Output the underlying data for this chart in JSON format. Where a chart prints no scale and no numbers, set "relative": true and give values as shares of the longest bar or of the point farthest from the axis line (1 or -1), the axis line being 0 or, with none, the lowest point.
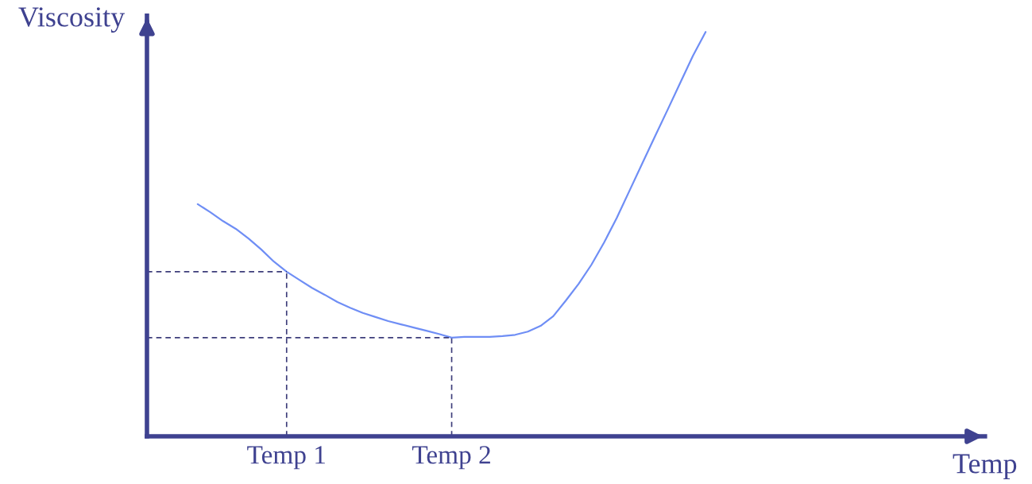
{
  "chart_data": {
    "type": "line",
    "relative": true,
    "xlabel": "Temp",
    "ylabel": "Viscosity",
    "categories": [
      null,
      null,
      null,
      null,
      null,
      null,
      null,
      null,
      null,
      null,
      null,
      "Temp 1",
      null,
      null,
      null,
      null,
      null,
      null,
      null,
      null,
      null,
      null,
      null,
      null,
      "Temp 2",
      null,
      null,
      null,
      null,
      null,
      null,
      null,
      null,
      null,
      null,
      null,
      null,
      null,
      null,
      null,
      null,
      null,
      null,
      null,
      null,
      null,
      null,
      null,
      null,
      null,
      null,
      null,
      null,
      null,
      null,
      null,
      null,
      null,
      null,
      null,
      null,
      null,
      null,
      null,
      null,
      null
    ],
    "marker": "none",
    "legend": false,
    "series": [
      {
        "color": "#6f8ef5",
        "line_style": "solid",
        "values": [
          null,
          null,
          null,
          null,
          0.574,
          0.554,
          0.532,
          0.513,
          0.489,
          0.462,
          0.432,
          0.407,
          0.387,
          0.367,
          0.35,
          0.332,
          0.318,
          0.305,
          0.295,
          0.285,
          0.277,
          0.269,
          0.261,
          0.253,
          0.244,
          0.246,
          0.246,
          0.246,
          0.248,
          0.251,
          0.259,
          0.273,
          0.297,
          0.336,
          0.377,
          0.424,
          0.479,
          0.54,
          0.607,
          0.674,
          0.741,
          0.807,
          0.874,
          0.941,
          1.0,
          null,
          null,
          null,
          null,
          null,
          null,
          null,
          null,
          null,
          null,
          null,
          null,
          null,
          null,
          null,
          null,
          null,
          null,
          null,
          null,
          null
        ]
      }
    ],
    "ref_lines": [
      {
        "axis": "x",
        "value": "Temp 1",
        "color": "#3d3d7a",
        "line_style": "dashed"
      },
      {
        "axis": "x",
        "value": "Temp 2",
        "color": "#3d3d7a",
        "line_style": "dashed"
      },
      {
        "axis": "y",
        "value": 0.407,
        "color": "#3d3d7a",
        "line_style": "dashed"
      },
      {
        "axis": "y",
        "value": 0.244,
        "color": "#3d3d7a",
        "line_style": "dashed"
      }
    ]
  }
}
